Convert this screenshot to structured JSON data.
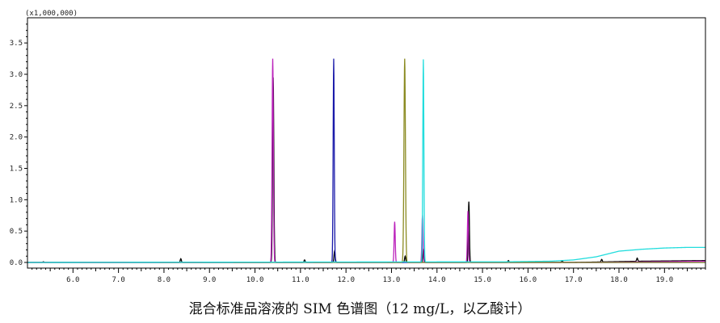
{
  "caption": "混合标准品溶液的 SIM 色谱图（12 mg/L，以乙酸计）",
  "chart_data": {
    "type": "line",
    "title": "",
    "xlabel": "",
    "ylabel": "",
    "y_scale_label": "(x1,000,000)",
    "xlim": [
      5.0,
      19.9
    ],
    "ylim": [
      0.0,
      3.85
    ],
    "grid": false,
    "x_ticks": [
      "6.0",
      "7.0",
      "8.0",
      "9.0",
      "10.0",
      "11.0",
      "12.0",
      "13.0",
      "14.0",
      "15.0",
      "16.0",
      "17.0",
      "18.0",
      "19.0"
    ],
    "y_ticks": [
      "0.0",
      "0.5",
      "1.0",
      "1.5",
      "2.0",
      "2.5",
      "3.0",
      "3.5"
    ],
    "series": [
      {
        "color": "#000000",
        "baseline": [
          [
            5.0,
            0.0
          ],
          [
            17.0,
            0.0
          ],
          [
            18.5,
            0.02
          ],
          [
            19.9,
            0.03
          ]
        ],
        "peaks": [
          {
            "x": 5.35,
            "y": 0.01,
            "w": 0.012
          },
          {
            "x": 8.37,
            "y": 0.06,
            "w": 0.012
          },
          {
            "x": 10.4,
            "y": 2.95,
            "w": 0.014
          },
          {
            "x": 11.09,
            "y": 0.04,
            "w": 0.012
          },
          {
            "x": 11.75,
            "y": 0.18,
            "w": 0.013
          },
          {
            "x": 13.3,
            "y": 0.1,
            "w": 0.012
          },
          {
            "x": 13.7,
            "y": 0.22,
            "w": 0.012
          },
          {
            "x": 14.7,
            "y": 0.97,
            "w": 0.012
          },
          {
            "x": 15.57,
            "y": 0.03,
            "w": 0.012
          },
          {
            "x": 16.75,
            "y": 0.03,
            "w": 0.012
          },
          {
            "x": 17.62,
            "y": 0.04,
            "w": 0.012
          },
          {
            "x": 18.4,
            "y": 0.05,
            "w": 0.012
          }
        ]
      },
      {
        "color": "#bb22bb",
        "baseline": [
          [
            5.0,
            0.0
          ],
          [
            17.5,
            0.0
          ],
          [
            19.9,
            0.02
          ]
        ],
        "peaks": [
          {
            "x": 10.39,
            "y": 3.25,
            "w": 0.014
          },
          {
            "x": 13.07,
            "y": 0.65,
            "w": 0.012
          },
          {
            "x": 13.68,
            "y": 0.75,
            "w": 0.012
          },
          {
            "x": 14.68,
            "y": 0.82,
            "w": 0.012
          }
        ]
      },
      {
        "color": "#1a1aaa",
        "baseline": [
          [
            5.0,
            0.0
          ],
          [
            19.9,
            0.0
          ]
        ],
        "peaks": [
          {
            "x": 11.73,
            "y": 3.25,
            "w": 0.012
          }
        ]
      },
      {
        "color": "#8b8b22",
        "baseline": [
          [
            5.0,
            0.0
          ],
          [
            19.9,
            0.0
          ]
        ],
        "peaks": [
          {
            "x": 13.29,
            "y": 3.25,
            "w": 0.016
          }
        ]
      },
      {
        "color": "#22dddd",
        "baseline": [
          [
            5.0,
            0.0
          ],
          [
            15.5,
            0.01
          ],
          [
            16.5,
            0.02
          ],
          [
            17.0,
            0.04
          ],
          [
            17.5,
            0.09
          ],
          [
            18.0,
            0.18
          ],
          [
            18.5,
            0.21
          ],
          [
            19.0,
            0.23
          ],
          [
            19.5,
            0.24
          ],
          [
            19.9,
            0.24
          ]
        ],
        "peaks": [
          {
            "x": 13.7,
            "y": 3.23,
            "w": 0.012
          }
        ]
      }
    ]
  }
}
